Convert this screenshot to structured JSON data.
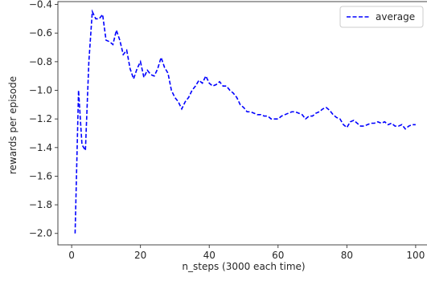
{
  "chart_data": {
    "type": "line",
    "xlabel": "n_steps (3000 each time)",
    "ylabel": "rewards per episode",
    "xlim": [
      -4,
      104
    ],
    "ylim": [
      -2.08,
      -0.38
    ],
    "x_ticks": [
      0,
      20,
      40,
      60,
      80,
      100
    ],
    "y_ticks": [
      -2.0,
      -1.8,
      -1.6,
      -1.4,
      -1.2,
      -1.0,
      -0.8,
      -0.6,
      -0.4
    ],
    "legend_position": "top-right",
    "grid": false,
    "series": [
      {
        "name": "average",
        "color": "#0000ff",
        "style": "dashed",
        "x": [
          1,
          2,
          3,
          4,
          5,
          6,
          7,
          8,
          9,
          10,
          11,
          12,
          13,
          14,
          15,
          16,
          17,
          18,
          19,
          20,
          21,
          22,
          23,
          24,
          25,
          26,
          27,
          28,
          29,
          30,
          31,
          32,
          33,
          34,
          35,
          36,
          37,
          38,
          39,
          40,
          41,
          42,
          43,
          44,
          45,
          46,
          47,
          48,
          49,
          50,
          51,
          52,
          53,
          54,
          55,
          56,
          57,
          58,
          59,
          60,
          61,
          62,
          63,
          64,
          65,
          66,
          67,
          68,
          69,
          70,
          71,
          72,
          73,
          74,
          75,
          76,
          77,
          78,
          79,
          80,
          81,
          82,
          83,
          84,
          85,
          86,
          87,
          88,
          89,
          90,
          91,
          92,
          93,
          94,
          95,
          96,
          97,
          98,
          99,
          100
        ],
        "y": [
          -2.0,
          -1.0,
          -1.38,
          -1.42,
          -0.8,
          -0.45,
          -0.5,
          -0.5,
          -0.47,
          -0.65,
          -0.66,
          -0.68,
          -0.58,
          -0.65,
          -0.75,
          -0.72,
          -0.85,
          -0.92,
          -0.85,
          -0.8,
          -0.91,
          -0.86,
          -0.89,
          -0.9,
          -0.85,
          -0.77,
          -0.84,
          -0.88,
          -1.0,
          -1.05,
          -1.08,
          -1.13,
          -1.08,
          -1.05,
          -1.0,
          -0.97,
          -0.93,
          -0.95,
          -0.9,
          -0.95,
          -0.97,
          -0.96,
          -0.94,
          -0.97,
          -0.97,
          -1.0,
          -1.02,
          -1.05,
          -1.1,
          -1.12,
          -1.15,
          -1.15,
          -1.16,
          -1.17,
          -1.17,
          -1.18,
          -1.18,
          -1.2,
          -1.2,
          -1.2,
          -1.18,
          -1.17,
          -1.16,
          -1.15,
          -1.15,
          -1.16,
          -1.17,
          -1.2,
          -1.18,
          -1.18,
          -1.16,
          -1.15,
          -1.13,
          -1.12,
          -1.14,
          -1.17,
          -1.19,
          -1.2,
          -1.24,
          -1.26,
          -1.22,
          -1.21,
          -1.23,
          -1.25,
          -1.25,
          -1.24,
          -1.23,
          -1.23,
          -1.22,
          -1.23,
          -1.22,
          -1.24,
          -1.23,
          -1.25,
          -1.25,
          -1.24,
          -1.27,
          -1.25,
          -1.24,
          -1.24
        ]
      }
    ]
  }
}
